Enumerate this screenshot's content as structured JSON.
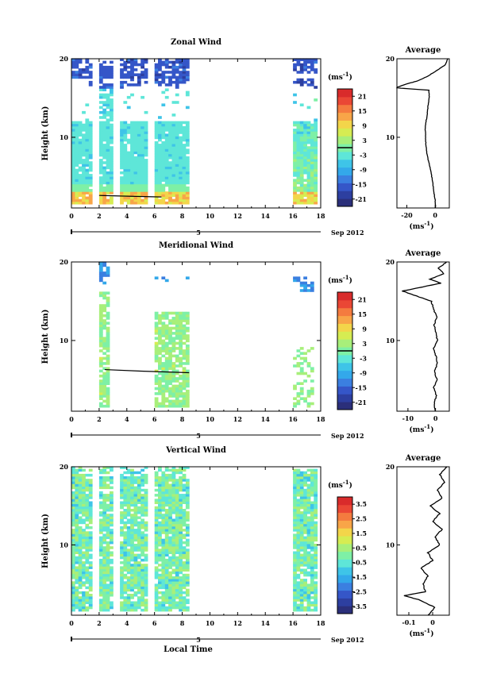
{
  "figure": {
    "xlabel": "Local Time",
    "date_label": "Sep 2012",
    "date_marker": "5",
    "unit_text": "(ms",
    "unit_exp": "-1",
    "unit_close": ")",
    "avg_unit_text": "(ms",
    "avg_unit_exp": "-1",
    "avg_unit_close": ")",
    "colormap": [
      "#2b2f7a",
      "#2d3fa0",
      "#3556c8",
      "#3b7fe0",
      "#33a8ea",
      "#3ec4e8",
      "#5ee6d8",
      "#7ef0a6",
      "#a8ef7a",
      "#d6ec52",
      "#f3d54a",
      "#f8a548",
      "#f47b3f",
      "#ea4735",
      "#d92b2b"
    ]
  },
  "chart_data": [
    {
      "type": "heatmap",
      "title": "Zonal Wind",
      "xlabel": "",
      "ylabel": "Height (km)",
      "xlim": [
        0,
        18
      ],
      "ylim": [
        1,
        20
      ],
      "xticks": [
        0,
        2,
        4,
        6,
        8,
        10,
        12,
        14,
        16,
        18
      ],
      "yticks": [
        10,
        20
      ],
      "colorbar": {
        "ticks": [
          21,
          15,
          9,
          3,
          -3,
          -9,
          -15,
          -21
        ],
        "range": [
          -24,
          24
        ],
        "contour": 0
      },
      "observation_periods": [
        [
          0,
          1.5
        ],
        [
          2.0,
          3.1
        ],
        [
          3.4,
          5.6
        ],
        [
          6.0,
          8.6
        ],
        [
          15.9,
          17.8
        ]
      ],
      "average": {
        "title": "Average",
        "xticks": [
          -20,
          0
        ],
        "xlim": [
          -27,
          10
        ],
        "ylim": [
          1,
          20
        ],
        "yticks": [
          10,
          20
        ],
        "profile": [
          [
            0.2,
            1
          ],
          [
            0.0,
            2
          ],
          [
            -0.8,
            3
          ],
          [
            -1.5,
            4
          ],
          [
            -2.4,
            5
          ],
          [
            -3.5,
            6
          ],
          [
            -4.8,
            7
          ],
          [
            -5.8,
            8
          ],
          [
            -6.5,
            9
          ],
          [
            -6.8,
            10
          ],
          [
            -7.0,
            11
          ],
          [
            -6.5,
            12
          ],
          [
            -5.5,
            13
          ],
          [
            -5.0,
            14
          ],
          [
            -4.2,
            15
          ],
          [
            -4.5,
            16
          ],
          [
            -28,
            16.3
          ],
          [
            -20,
            16.8
          ],
          [
            -12,
            17.2
          ],
          [
            -5,
            17.8
          ],
          [
            2,
            18.6
          ],
          [
            7,
            19.2
          ],
          [
            9,
            20
          ]
        ]
      }
    },
    {
      "type": "heatmap",
      "title": "Meridional Wind",
      "xlabel": "",
      "ylabel": "Height (km)",
      "xlim": [
        0,
        18
      ],
      "ylim": [
        1,
        20
      ],
      "xticks": [
        0,
        2,
        4,
        6,
        8,
        10,
        12,
        14,
        16,
        18
      ],
      "yticks": [
        10,
        20
      ],
      "colorbar": {
        "ticks": [
          21,
          15,
          9,
          3,
          -3,
          -9,
          -15,
          -21
        ],
        "range": [
          -24,
          24
        ],
        "contour": 0
      },
      "observation_periods": [
        [
          2.0,
          2.8
        ],
        [
          6.0,
          8.6
        ],
        [
          15.9,
          17.6
        ]
      ],
      "average": {
        "title": "Average",
        "xticks": [
          -10,
          0
        ],
        "xlim": [
          -14,
          5
        ],
        "ylim": [
          1,
          20
        ],
        "yticks": [
          10,
          20
        ],
        "profile": [
          [
            0.0,
            1
          ],
          [
            -0.5,
            2
          ],
          [
            0.3,
            3
          ],
          [
            -0.6,
            4
          ],
          [
            0.5,
            5
          ],
          [
            -0.4,
            6
          ],
          [
            0.6,
            7
          ],
          [
            0.2,
            8
          ],
          [
            -0.8,
            9
          ],
          [
            0.7,
            10
          ],
          [
            0.1,
            11
          ],
          [
            -0.5,
            12
          ],
          [
            0.4,
            13
          ],
          [
            -0.7,
            14
          ],
          [
            -1.5,
            15
          ],
          [
            -8,
            15.8
          ],
          [
            -12,
            16.3
          ],
          [
            -5,
            16.8
          ],
          [
            2,
            17.3
          ],
          [
            -2,
            17.8
          ],
          [
            3,
            18.5
          ],
          [
            1,
            19.2
          ],
          [
            4,
            20
          ]
        ]
      }
    },
    {
      "type": "heatmap",
      "title": "Vertical Wind",
      "xlabel": "Local Time",
      "ylabel": "Height (km)",
      "xlim": [
        0,
        18
      ],
      "ylim": [
        1,
        20
      ],
      "xticks": [
        0,
        2,
        4,
        6,
        8,
        10,
        12,
        14,
        16,
        18
      ],
      "yticks": [
        10,
        20
      ],
      "colorbar": {
        "ticks": [
          3.5,
          2.5,
          1.5,
          0.5,
          -0.5,
          -1.5,
          -2.5,
          -3.5
        ],
        "range": [
          -4,
          4
        ]
      },
      "observation_periods": [
        [
          0,
          1.5
        ],
        [
          2.0,
          3.1
        ],
        [
          3.4,
          5.6
        ],
        [
          6.0,
          8.6
        ],
        [
          15.9,
          17.8
        ]
      ],
      "average": {
        "title": "Average",
        "xticks": [
          -0.1,
          0.0
        ],
        "xlim": [
          -0.15,
          0.07
        ],
        "ylim": [
          1,
          20
        ],
        "yticks": [
          10,
          20
        ],
        "profile": [
          [
            -0.02,
            1
          ],
          [
            0.01,
            2
          ],
          [
            -0.06,
            3
          ],
          [
            -0.12,
            3.5
          ],
          [
            -0.03,
            4
          ],
          [
            -0.04,
            5
          ],
          [
            -0.02,
            6
          ],
          [
            -0.05,
            7
          ],
          [
            0.0,
            8
          ],
          [
            -0.02,
            9
          ],
          [
            0.03,
            10
          ],
          [
            0.01,
            11
          ],
          [
            0.04,
            12
          ],
          [
            0.0,
            13
          ],
          [
            0.03,
            14
          ],
          [
            -0.01,
            15
          ],
          [
            0.04,
            16
          ],
          [
            0.02,
            17
          ],
          [
            0.05,
            18
          ],
          [
            0.03,
            19
          ],
          [
            0.06,
            20
          ]
        ]
      }
    }
  ]
}
